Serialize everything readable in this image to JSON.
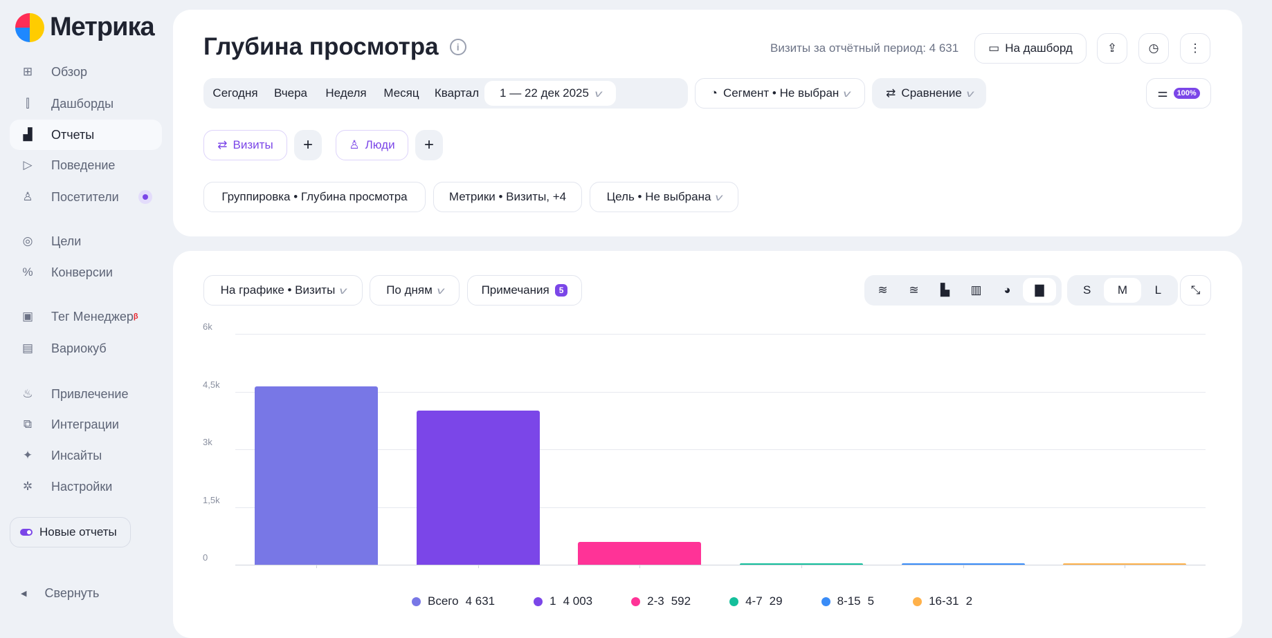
{
  "app": {
    "logo": "Метрика"
  },
  "sidebar": {
    "items": [
      {
        "label": "Обзор",
        "icon": "grid-icon",
        "glyph": "⊞"
      },
      {
        "label": "Дашборды",
        "icon": "dashboards-icon",
        "glyph": "⫿"
      },
      {
        "label": "Отчеты",
        "icon": "reports-icon",
        "glyph": "▟",
        "active": true
      },
      {
        "label": "Поведение",
        "icon": "play-icon",
        "glyph": "▷"
      },
      {
        "label": "Посетители",
        "icon": "user-icon",
        "glyph": "♙"
      },
      {
        "label": "Цели",
        "icon": "target-icon",
        "glyph": "◎"
      },
      {
        "label": "Конверсии",
        "icon": "percent-icon",
        "glyph": "%"
      },
      {
        "label": "Тег Менеджер",
        "icon": "tag-manager-icon",
        "glyph": "▣",
        "beta": "β"
      },
      {
        "label": "Вариокуб",
        "icon": "variocube-icon",
        "glyph": "▤"
      },
      {
        "label": "Привлечение",
        "icon": "fire-icon",
        "glyph": "♨"
      },
      {
        "label": "Интеграции",
        "icon": "puzzle-icon",
        "glyph": "⧉"
      },
      {
        "label": "Инсайты",
        "icon": "sparkle-icon",
        "glyph": "✦"
      },
      {
        "label": "Настройки",
        "icon": "gear-icon",
        "glyph": "✲"
      }
    ],
    "new_reports": "Новые отчеты",
    "collapse": "Свернуть"
  },
  "header": {
    "title": "Глубина просмотра",
    "visits_summary": "Визиты за отчётный период: 4 631",
    "to_dashboard": "На дашборд",
    "periods": [
      "Сегодня",
      "Вчера",
      "Неделя",
      "Месяц",
      "Квартал"
    ],
    "date_range": "1 — 22 дек 2025",
    "segment": "Сегмент • Не выбран",
    "comparison": "Сравнение",
    "sampling": "100%",
    "chips": [
      "Визиты",
      "Люди"
    ],
    "grouping": "Группировка • Глубина просмотра",
    "metrics": "Метрики • Визиты, +4",
    "goal": "Цель • Не выбрана"
  },
  "chart_controls": {
    "on_chart": "На графике • Визиты",
    "by": "По дням",
    "notes": "Примечания",
    "notes_count": "5",
    "sizes": [
      "S",
      "M",
      "L"
    ],
    "selected_size": "M"
  },
  "chart_data": {
    "type": "bar",
    "title": "",
    "xlabel": "",
    "ylabel": "",
    "ylim": [
      0,
      6000
    ],
    "yticks": [
      "0",
      "1,5k",
      "3k",
      "4,5k",
      "6k"
    ],
    "ytick_values": [
      0,
      1500,
      3000,
      4500,
      6000
    ],
    "categories": [
      "Всего",
      "1",
      "2-3",
      "4-7",
      "8-15",
      "16-31"
    ],
    "values": [
      4631,
      4003,
      592,
      29,
      5,
      2
    ],
    "values_text": [
      "4 631",
      "4 003",
      "592",
      "29",
      "5",
      "2"
    ],
    "colors": [
      "#7877e6",
      "#7b46e8",
      "#ff3397",
      "#14bf9b",
      "#3a8cf7",
      "#ffb14a"
    ],
    "legend": "bottom"
  }
}
